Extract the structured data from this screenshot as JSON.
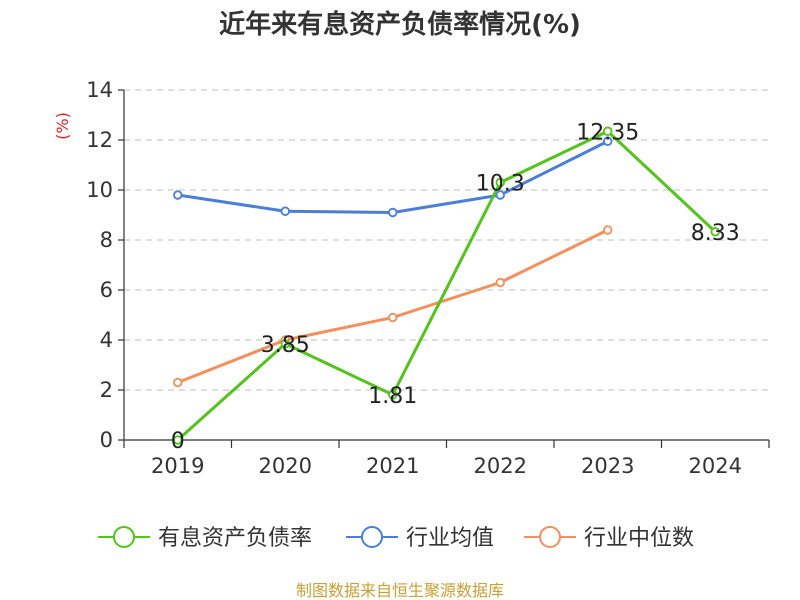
{
  "chart_data": {
    "type": "line",
    "title": "近年来有息资产负债率情况(%)",
    "ylabel": "(%)",
    "xlabel": "",
    "categories": [
      "2019",
      "2020",
      "2021",
      "2022",
      "2023",
      "2024"
    ],
    "ylim": [
      0,
      14
    ],
    "yticks": [
      0,
      2,
      4,
      6,
      8,
      10,
      12,
      14
    ],
    "grid": true,
    "legend_position": "bottom",
    "series": [
      {
        "name": "有息资产负债率",
        "color": "#52c41a",
        "values": [
          0,
          3.85,
          1.81,
          10.3,
          12.35,
          8.33
        ],
        "labels": [
          "0",
          "3.85",
          "1.81",
          "10.3",
          "12.35",
          "8.33"
        ]
      },
      {
        "name": "行业均值",
        "color": "#4a7fd9",
        "values": [
          9.8,
          9.15,
          9.1,
          9.8,
          11.95,
          null
        ]
      },
      {
        "name": "行业中位数",
        "color": "#f58f5c",
        "values": [
          2.3,
          4.0,
          4.9,
          6.3,
          8.4,
          null
        ]
      }
    ],
    "ylabel_color": "#e02020"
  },
  "footer": {
    "source": "制图数据来自恒生聚源数据库",
    "color": "#c9a033"
  }
}
